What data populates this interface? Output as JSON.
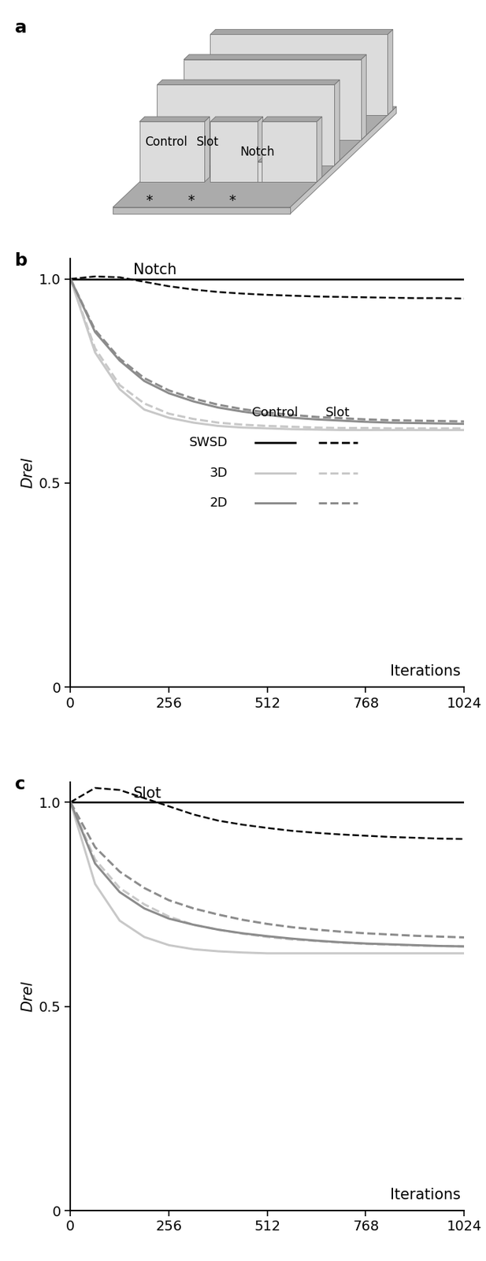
{
  "panel_a": {
    "label": "a",
    "wall_labels": [
      "Control",
      "Slot",
      "Notch"
    ],
    "floor_marks": [
      "*",
      "*",
      "*"
    ]
  },
  "chart_data": [
    {
      "type": "line",
      "panel_label": "b",
      "title": "Notch",
      "xlabel": "Iterations",
      "ylabel": "Drel",
      "legend": "center",
      "x": [
        0,
        64,
        128,
        192,
        256,
        320,
        384,
        448,
        512,
        576,
        640,
        704,
        768,
        832,
        896,
        960,
        1024
      ],
      "xlim": [
        0,
        1024
      ],
      "xticks": [
        0,
        256,
        512,
        768,
        1024
      ],
      "ylim": [
        0,
        1.05
      ],
      "yticks": [
        0,
        0.5,
        1.0
      ],
      "series": [
        {
          "name": "SWSD",
          "condition": "Control",
          "color": "#000000",
          "line_style": "solid",
          "values": [
            1.0,
            1.0,
            1.0,
            1.0,
            1.0,
            1.0,
            1.0,
            1.0,
            1.0,
            1.0,
            1.0,
            1.0,
            1.0,
            1.0,
            1.0,
            1.0,
            1.0
          ]
        },
        {
          "name": "SWSD",
          "condition": "Slot",
          "color": "#000000",
          "line_style": "dashed",
          "values": [
            1.0,
            1.006,
            1.004,
            0.993,
            0.982,
            0.974,
            0.968,
            0.964,
            0.961,
            0.959,
            0.957,
            0.956,
            0.955,
            0.954,
            0.953,
            0.953,
            0.952
          ]
        },
        {
          "name": "3D",
          "condition": "Control",
          "color": "#c8c8c8",
          "line_style": "solid",
          "values": [
            1.0,
            0.82,
            0.73,
            0.68,
            0.66,
            0.648,
            0.64,
            0.636,
            0.634,
            0.632,
            0.631,
            0.63,
            0.63,
            0.63,
            0.63,
            0.63,
            0.63
          ]
        },
        {
          "name": "3D",
          "condition": "Slot",
          "color": "#c8c8c8",
          "line_style": "dashed",
          "values": [
            1.0,
            0.83,
            0.74,
            0.695,
            0.67,
            0.657,
            0.648,
            0.643,
            0.64,
            0.638,
            0.636,
            0.635,
            0.635,
            0.634,
            0.634,
            0.634,
            0.634
          ]
        },
        {
          "name": "2D",
          "condition": "Control",
          "color": "#8c8c8c",
          "line_style": "solid",
          "values": [
            1.0,
            0.87,
            0.8,
            0.75,
            0.72,
            0.7,
            0.685,
            0.675,
            0.667,
            0.66,
            0.656,
            0.653,
            0.65,
            0.648,
            0.647,
            0.646,
            0.645
          ]
        },
        {
          "name": "2D",
          "condition": "Slot",
          "color": "#8c8c8c",
          "line_style": "dashed",
          "values": [
            1.0,
            0.875,
            0.805,
            0.757,
            0.727,
            0.707,
            0.692,
            0.681,
            0.673,
            0.667,
            0.662,
            0.659,
            0.656,
            0.654,
            0.653,
            0.652,
            0.651
          ]
        }
      ]
    },
    {
      "type": "line",
      "panel_label": "c",
      "title": "Slot",
      "xlabel": "Iterations",
      "ylabel": "Drel",
      "x": [
        0,
        64,
        128,
        192,
        256,
        320,
        384,
        448,
        512,
        576,
        640,
        704,
        768,
        832,
        896,
        960,
        1024
      ],
      "xlim": [
        0,
        1024
      ],
      "xticks": [
        0,
        256,
        512,
        768,
        1024
      ],
      "ylim": [
        0,
        1.05
      ],
      "yticks": [
        0,
        0.5,
        1.0
      ],
      "series": [
        {
          "name": "SWSD",
          "condition": "Control",
          "color": "#000000",
          "line_style": "solid",
          "values": [
            1.0,
            1.0,
            1.0,
            1.0,
            1.0,
            1.0,
            1.0,
            1.0,
            1.0,
            1.0,
            1.0,
            1.0,
            1.0,
            1.0,
            1.0,
            1.0,
            1.0
          ]
        },
        {
          "name": "SWSD",
          "condition": "Slot",
          "color": "#000000",
          "line_style": "dashed",
          "values": [
            1.0,
            1.035,
            1.03,
            1.01,
            0.99,
            0.97,
            0.955,
            0.945,
            0.937,
            0.93,
            0.925,
            0.921,
            0.918,
            0.915,
            0.913,
            0.911,
            0.91
          ]
        },
        {
          "name": "3D",
          "condition": "Control",
          "color": "#c8c8c8",
          "line_style": "solid",
          "values": [
            1.0,
            0.8,
            0.71,
            0.67,
            0.65,
            0.64,
            0.635,
            0.632,
            0.63,
            0.63,
            0.63,
            0.63,
            0.63,
            0.63,
            0.63,
            0.63,
            0.63
          ]
        },
        {
          "name": "3D",
          "condition": "Slot",
          "color": "#c8c8c8",
          "line_style": "dashed",
          "values": [
            1.0,
            0.86,
            0.79,
            0.75,
            0.72,
            0.7,
            0.688,
            0.678,
            0.67,
            0.664,
            0.66,
            0.656,
            0.653,
            0.651,
            0.649,
            0.648,
            0.647
          ]
        },
        {
          "name": "2D",
          "condition": "Control",
          "color": "#8c8c8c",
          "line_style": "solid",
          "values": [
            1.0,
            0.85,
            0.78,
            0.74,
            0.715,
            0.7,
            0.688,
            0.679,
            0.672,
            0.666,
            0.661,
            0.657,
            0.654,
            0.652,
            0.65,
            0.648,
            0.647
          ]
        },
        {
          "name": "2D",
          "condition": "Slot",
          "color": "#8c8c8c",
          "line_style": "dashed",
          "values": [
            1.0,
            0.89,
            0.83,
            0.79,
            0.76,
            0.74,
            0.725,
            0.712,
            0.702,
            0.694,
            0.688,
            0.683,
            0.679,
            0.676,
            0.673,
            0.671,
            0.669
          ]
        }
      ]
    }
  ]
}
